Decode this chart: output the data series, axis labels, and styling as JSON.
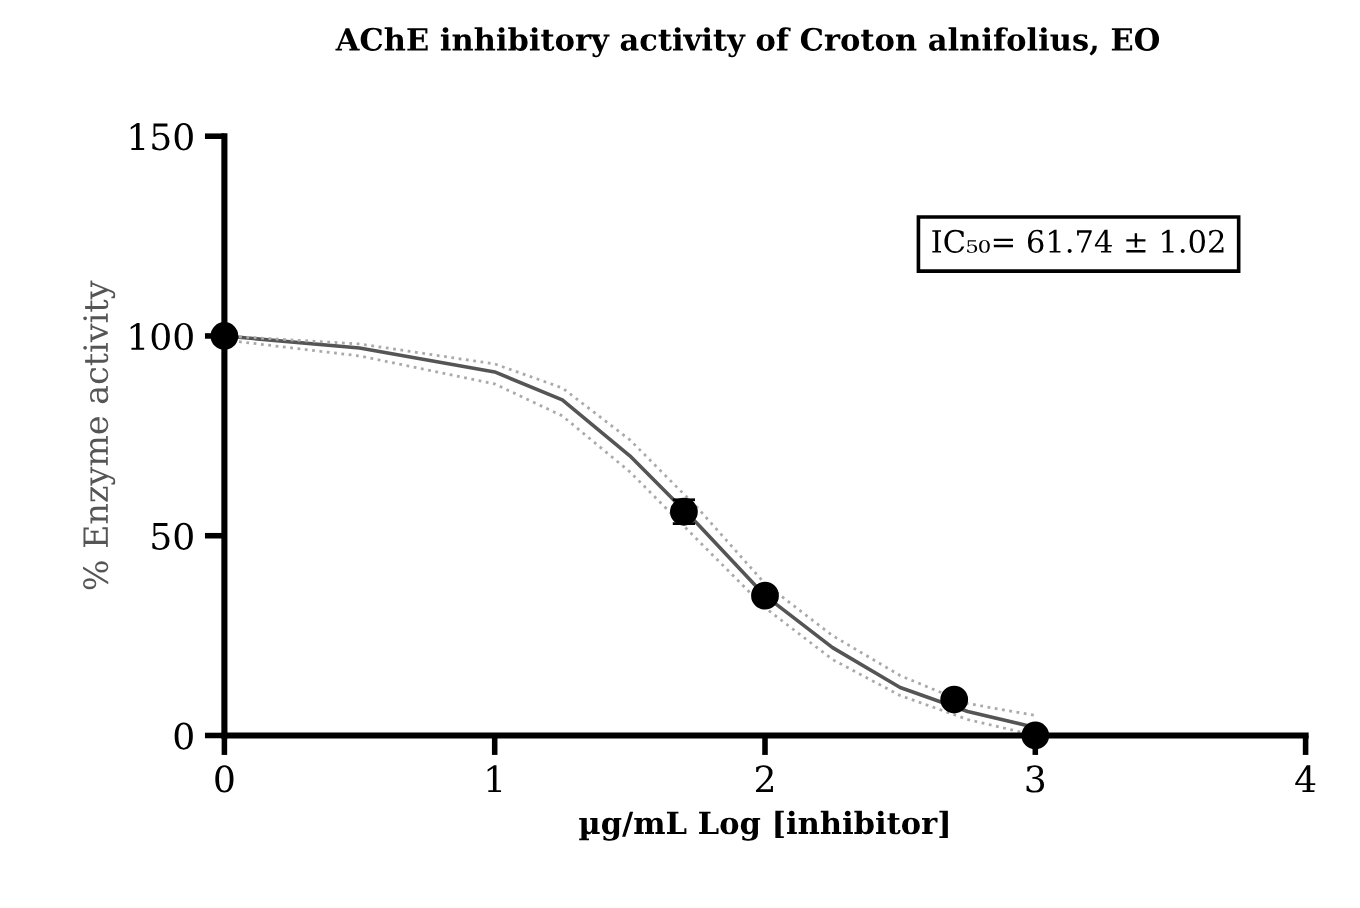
{
  "chart_data": {
    "type": "scatter",
    "title": "AChE inhibitory activity of Croton alnifolius, EO",
    "xlabel": "µg/mL Log [inhibitor]",
    "ylabel": "% Enzyme activity",
    "annotations": [
      "IC₅₀= 61.74 ± 1.02"
    ],
    "xlim": [
      0,
      4
    ],
    "ylim": [
      0,
      150
    ],
    "xticks": [
      0,
      1,
      2,
      3,
      4
    ],
    "yticks": [
      0,
      50,
      100,
      150
    ],
    "grid": false,
    "series": [
      {
        "color": "#000000",
        "marker": "circle",
        "x": [
          0,
          1.7,
          2,
          2.7,
          3
        ],
        "values": [
          100,
          56,
          35,
          9,
          0
        ],
        "errors": [
          null,
          3,
          null,
          null,
          null
        ]
      },
      {
        "type": "line",
        "color": "#555555",
        "line_style": "solid",
        "marker": "none",
        "x": [
          0,
          0.5,
          1,
          1.25,
          1.5,
          1.75,
          2,
          2.25,
          2.5,
          2.75,
          3
        ],
        "values": [
          100,
          97,
          91,
          84,
          70,
          53,
          35,
          22,
          12,
          6,
          2
        ]
      },
      {
        "type": "line",
        "color": "#aaaaaa",
        "line_style": "dotted",
        "marker": "none",
        "x": [
          0,
          0.5,
          1,
          1.25,
          1.5,
          1.75,
          2,
          2.25,
          2.5,
          2.75,
          3
        ],
        "values": [
          100,
          98,
          93,
          87,
          74,
          57,
          38,
          25,
          15,
          8,
          5
        ]
      },
      {
        "type": "line",
        "color": "#aaaaaa",
        "line_style": "dotted",
        "marker": "none",
        "x": [
          0,
          0.5,
          1,
          1.25,
          1.5,
          1.75,
          2,
          2.25,
          2.5,
          2.75,
          3
        ],
        "values": [
          99,
          95,
          88,
          80,
          66,
          49,
          32,
          19,
          10,
          4,
          0
        ]
      }
    ]
  }
}
